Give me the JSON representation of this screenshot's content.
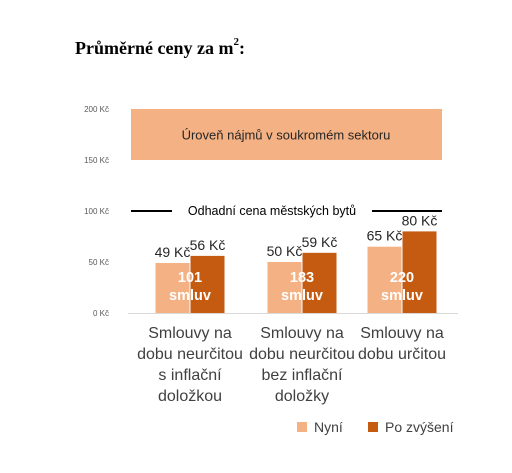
{
  "page": {
    "title_main": "Průměrné ceny za m",
    "title_sup": "2",
    "title_suffix": ":"
  },
  "chart_data": {
    "type": "bar",
    "ylim": [
      0,
      200
    ],
    "yticks": [
      {
        "value": 0,
        "label": "0 Kč"
      },
      {
        "value": 50,
        "label": "50 Kč"
      },
      {
        "value": 100,
        "label": "100 Kč"
      },
      {
        "value": 150,
        "label": "150 Kč"
      },
      {
        "value": 200,
        "label": "200 Kč"
      }
    ],
    "grid": false,
    "categories": [
      {
        "lines": [
          "Smlouvy na",
          "dobu neurčitou",
          "s inflační",
          "doložkou"
        ]
      },
      {
        "lines": [
          "Smlouvy na",
          "dobu neurčitou",
          "bez inflační",
          "doložky"
        ]
      },
      {
        "lines": [
          "Smlouvy na",
          "dobu určitou"
        ]
      }
    ],
    "series": [
      {
        "name": "Nyní",
        "color": "#F4B183",
        "values": [
          49,
          50,
          65
        ],
        "labels": [
          "49 Kč",
          "50 Kč",
          "65 Kč"
        ]
      },
      {
        "name": "Po zvýšení",
        "color": "#C55A11",
        "values": [
          56,
          59,
          80
        ],
        "labels": [
          "56 Kč",
          "59 Kč",
          "80 Kč"
        ]
      }
    ],
    "contract_counts": [
      {
        "number": "101",
        "unit": "smluv"
      },
      {
        "number": "183",
        "unit": "smluv"
      },
      {
        "number": "220",
        "unit": "smluv"
      }
    ],
    "band": {
      "from": 150,
      "to": 200,
      "label": "Úroveň nájmů v soukromém sektoru",
      "color": "#F4B183"
    },
    "reference_line": {
      "value": 100,
      "label": "Odhadní cena městských bytů",
      "color": "#000000"
    },
    "legend_position": "bottom-right"
  }
}
